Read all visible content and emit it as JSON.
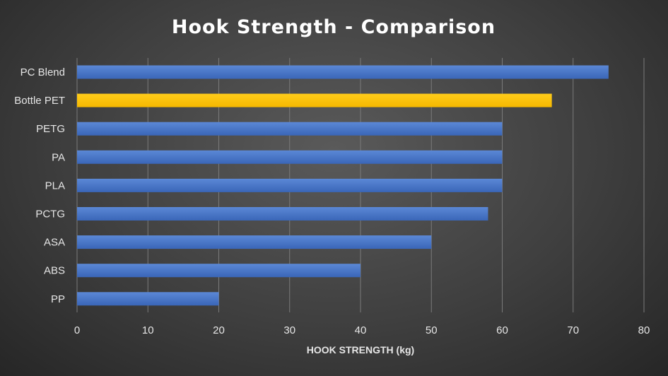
{
  "chart_data": {
    "type": "bar",
    "orientation": "horizontal",
    "title": "Hook Strength - Comparison",
    "xlabel": "HOOK STRENGTH (kg)",
    "ylabel": "",
    "categories": [
      "PC Blend",
      "Bottle PET",
      "PETG",
      "PA",
      "PLA",
      "PCTG",
      "ASA",
      "ABS",
      "PP"
    ],
    "values": [
      75,
      67,
      60,
      60,
      60,
      58,
      50,
      40,
      20
    ],
    "highlight_category": "Bottle PET",
    "xlim": [
      0,
      80
    ],
    "xticks": [
      "0",
      "10",
      "20",
      "30",
      "40",
      "50",
      "60",
      "70",
      "80"
    ],
    "grid": true,
    "legend": "none",
    "colors": {
      "bar": "#4472c4",
      "highlight": "#ffc000",
      "text": "#e6e6e6",
      "grid": "#7a7a7a"
    }
  }
}
